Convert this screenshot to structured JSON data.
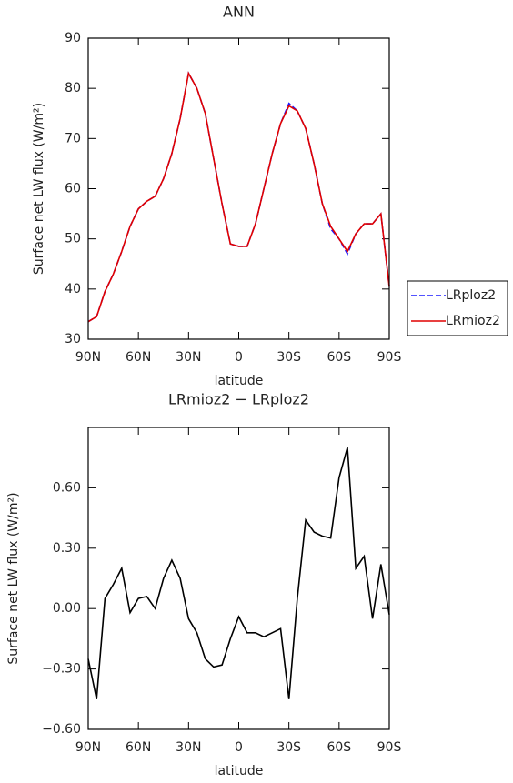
{
  "chart_data": [
    {
      "type": "line",
      "title": "ANN",
      "xlabel": "latitude",
      "ylabel": "Surface net LW flux (W/m²)",
      "x": [
        90,
        85,
        80,
        75,
        70,
        65,
        60,
        55,
        50,
        45,
        40,
        35,
        30,
        25,
        20,
        15,
        10,
        5,
        0,
        -5,
        -10,
        -15,
        -20,
        -25,
        -30,
        -35,
        -40,
        -45,
        -50,
        -55,
        -60,
        -65,
        -70,
        -75,
        -80,
        -85,
        -90
      ],
      "xlim": [
        90,
        -90
      ],
      "xticks": [
        {
          "value": 90,
          "label": "90N"
        },
        {
          "value": 60,
          "label": "60N"
        },
        {
          "value": 30,
          "label": "30N"
        },
        0,
        {
          "value": -30,
          "label": "30S"
        },
        {
          "value": -60,
          "label": "60S"
        },
        {
          "value": -90,
          "label": "90S"
        }
      ],
      "ylim": [
        30,
        90
      ],
      "yticks": [
        30,
        40,
        50,
        60,
        70,
        80,
        90
      ],
      "legend": "right",
      "series": [
        {
          "name": "LRploz2",
          "color": "#1a1aff",
          "style": "dashed",
          "values": [
            33.5,
            34.5,
            39.5,
            43,
            47.5,
            52.5,
            56,
            57.5,
            58.5,
            62,
            67,
            74,
            83,
            80,
            75,
            66,
            57,
            49,
            48.5,
            48.5,
            53,
            60,
            67,
            73,
            77,
            75.5,
            72,
            65,
            57,
            52,
            50,
            47,
            51,
            53,
            53,
            55,
            40.5
          ]
        },
        {
          "name": "LRmioz2",
          "color": "#e00000",
          "style": "solid",
          "values": [
            33.5,
            34.5,
            39.5,
            43,
            47.5,
            52.5,
            56,
            57.5,
            58.5,
            62,
            67,
            74,
            83,
            80,
            75,
            66,
            57,
            49,
            48.5,
            48.5,
            53,
            60,
            67,
            73,
            76.5,
            75.5,
            72,
            65,
            57,
            52.5,
            50,
            47.5,
            51,
            53,
            53,
            55,
            40.5
          ]
        }
      ]
    },
    {
      "type": "line",
      "title": "LRmioz2 − LRploz2",
      "xlabel": "latitude",
      "ylabel": "Surface net LW flux (W/m²)",
      "x": [
        90,
        85,
        80,
        75,
        70,
        65,
        60,
        55,
        50,
        45,
        40,
        35,
        30,
        25,
        20,
        15,
        10,
        5,
        0,
        -5,
        -10,
        -15,
        -20,
        -25,
        -30,
        -35,
        -40,
        -45,
        -50,
        -55,
        -60,
        -65,
        -70,
        -75,
        -80,
        -85,
        -90
      ],
      "xlim": [
        90,
        -90
      ],
      "xticks": [
        {
          "value": 90,
          "label": "90N"
        },
        {
          "value": 60,
          "label": "60N"
        },
        {
          "value": 30,
          "label": "30N"
        },
        0,
        {
          "value": -30,
          "label": "30S"
        },
        {
          "value": -60,
          "label": "60S"
        },
        {
          "value": -90,
          "label": "90S"
        }
      ],
      "ylim": [
        -0.6,
        0.9
      ],
      "yticks": [
        {
          "value": -0.6,
          "label": "−0.60"
        },
        {
          "value": -0.3,
          "label": "−0.30"
        },
        {
          "value": 0,
          "label": "0.00"
        },
        {
          "value": 0.3,
          "label": "0.30"
        },
        {
          "value": 0.6,
          "label": "0.60"
        }
      ],
      "color": "#000000",
      "values": [
        -0.25,
        -0.45,
        0.05,
        0.12,
        0.2,
        -0.02,
        0.05,
        0.06,
        0.0,
        0.15,
        0.24,
        0.15,
        -0.05,
        -0.12,
        -0.25,
        -0.29,
        -0.28,
        -0.15,
        -0.04,
        -0.12,
        -0.12,
        -0.14,
        -0.12,
        -0.1,
        -0.45,
        0.05,
        0.44,
        0.38,
        0.36,
        0.35,
        0.65,
        0.8,
        0.2,
        0.26,
        -0.05,
        0.22,
        -0.03
      ]
    }
  ]
}
